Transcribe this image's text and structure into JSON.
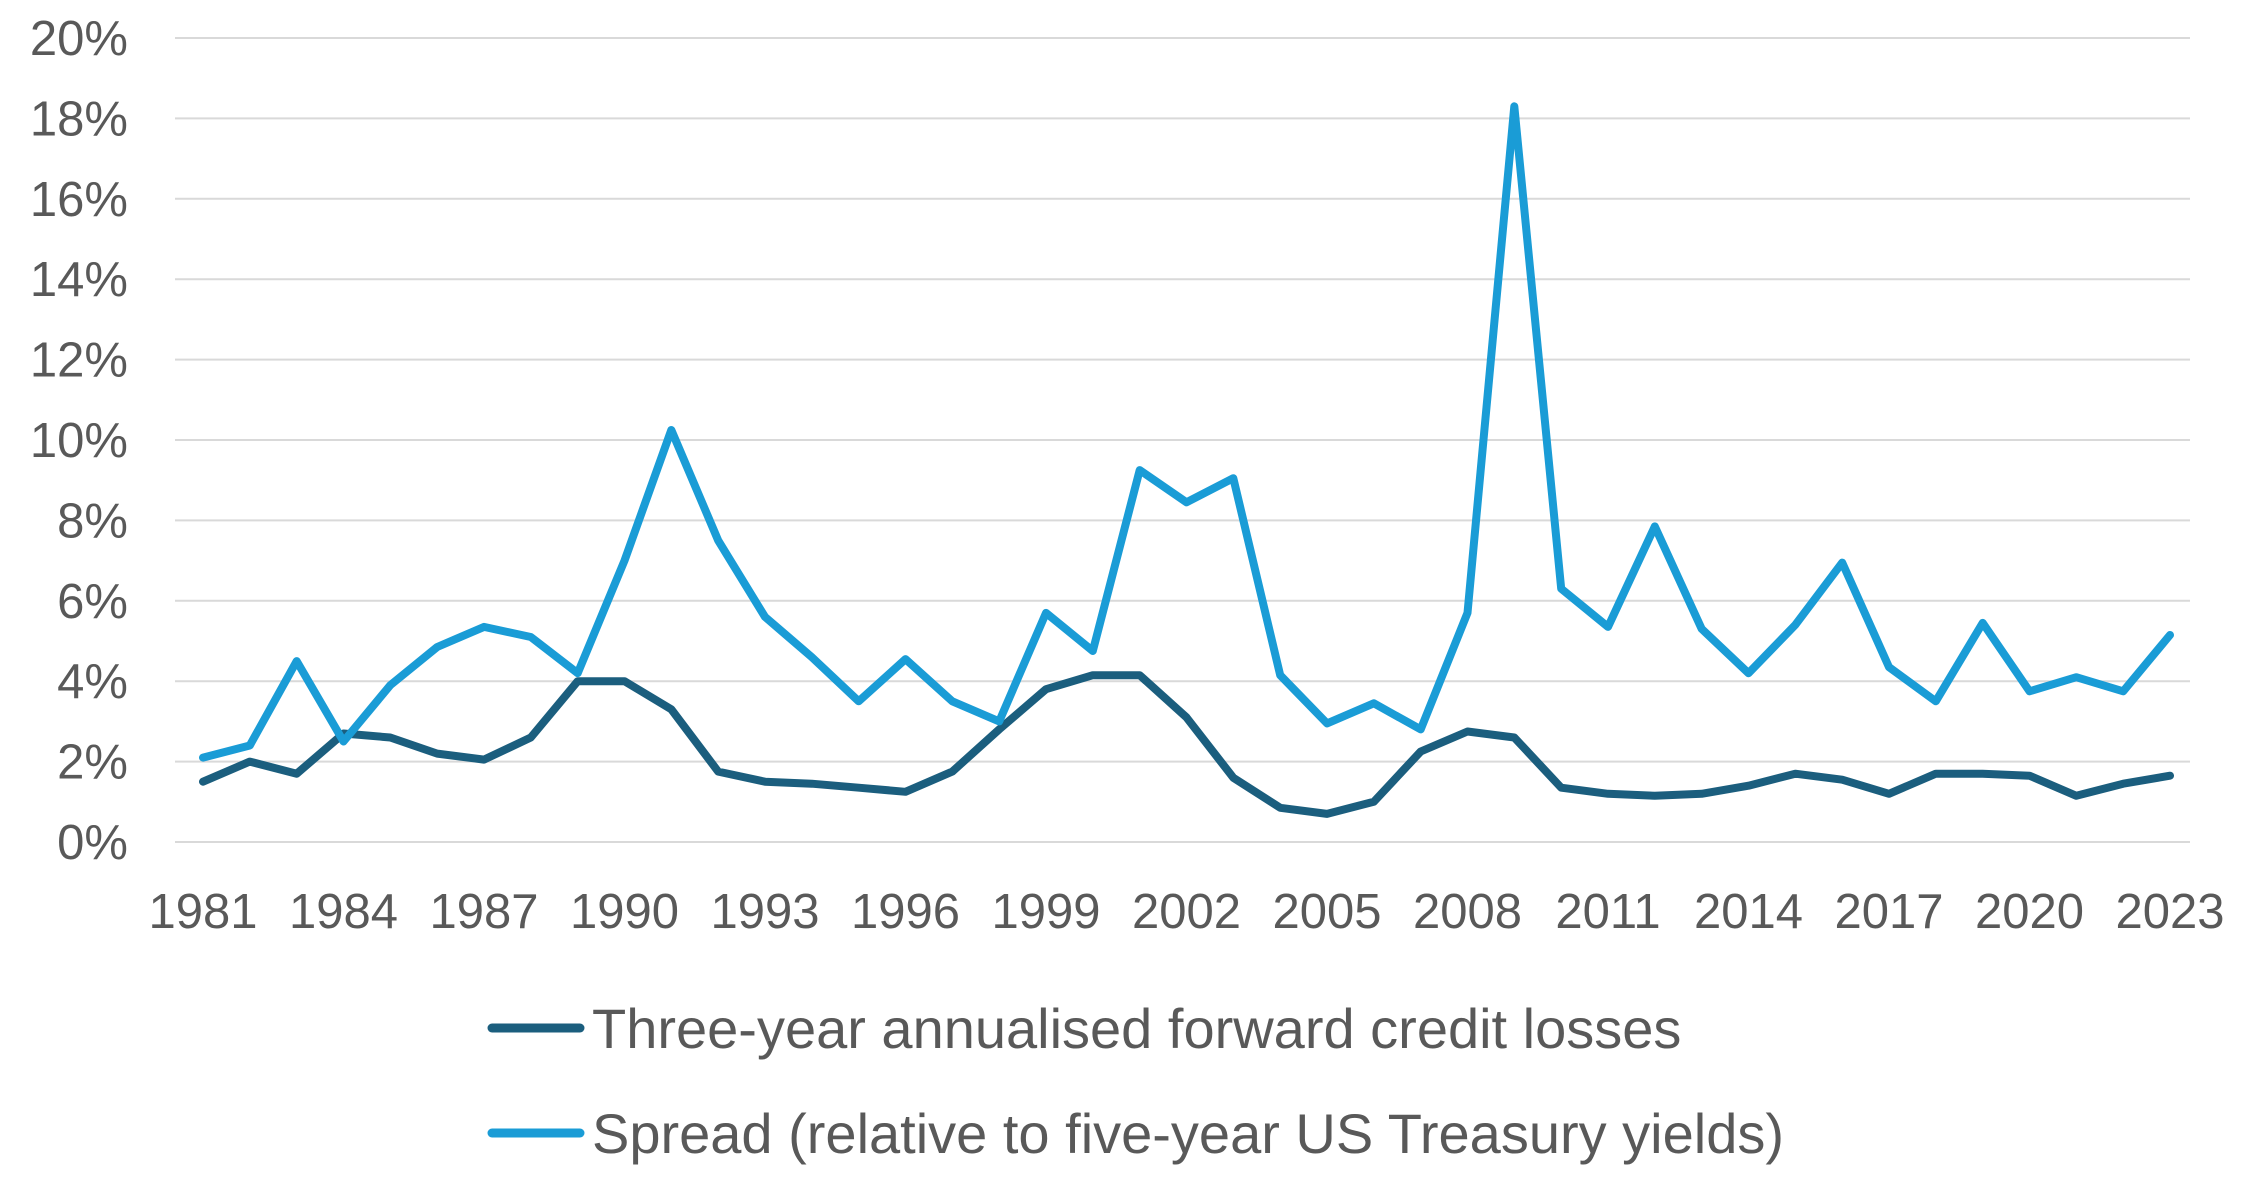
{
  "chart_data": {
    "type": "line",
    "title": "",
    "xlabel": "",
    "ylabel": "",
    "ylim": [
      0,
      20
    ],
    "y_ticks": [
      "0%",
      "2%",
      "4%",
      "6%",
      "8%",
      "10%",
      "12%",
      "14%",
      "16%",
      "18%",
      "20%"
    ],
    "y_tick_values": [
      0,
      2,
      4,
      6,
      8,
      10,
      12,
      14,
      16,
      18,
      20
    ],
    "x": [
      1981,
      1982,
      1983,
      1984,
      1985,
      1986,
      1987,
      1988,
      1989,
      1990,
      1991,
      1992,
      1993,
      1994,
      1995,
      1996,
      1997,
      1998,
      1999,
      2000,
      2001,
      2002,
      2003,
      2004,
      2005,
      2006,
      2007,
      2008,
      2009,
      2010,
      2011,
      2012,
      2013,
      2014,
      2015,
      2016,
      2017,
      2018,
      2019,
      2020,
      2021,
      2022,
      2023
    ],
    "x_tick_labels": [
      "1981",
      "1984",
      "1987",
      "1990",
      "1993",
      "1996",
      "1999",
      "2002",
      "2005",
      "2008",
      "2011",
      "2014",
      "2017",
      "2020",
      "2023"
    ],
    "grid": "horizontal",
    "legend_position": "bottom",
    "series": [
      {
        "name": "Three-year annualised forward credit losses",
        "color": "#1b5e7e",
        "values": [
          1.5,
          2.0,
          1.7,
          2.7,
          2.6,
          2.2,
          2.05,
          2.6,
          4.0,
          4.0,
          3.3,
          1.75,
          1.5,
          1.45,
          1.35,
          1.25,
          1.75,
          2.8,
          3.8,
          4.15,
          4.15,
          3.1,
          1.6,
          0.85,
          0.7,
          1.0,
          2.25,
          2.75,
          2.6,
          1.35,
          1.2,
          1.15,
          1.2,
          1.4,
          1.7,
          1.55,
          1.2,
          1.7,
          1.7,
          1.65,
          1.15,
          1.45,
          1.65
        ]
      },
      {
        "name": "Spread (relative to five-year US Treasury yields)",
        "color": "#1a9cd6",
        "values": [
          2.1,
          2.4,
          4.5,
          2.5,
          3.9,
          4.85,
          5.35,
          5.1,
          4.2,
          7.0,
          10.25,
          7.5,
          5.6,
          4.6,
          3.5,
          4.55,
          3.5,
          3.0,
          5.7,
          4.75,
          9.25,
          8.45,
          9.05,
          4.15,
          2.95,
          3.45,
          2.8,
          5.7,
          18.3,
          6.3,
          5.35,
          7.85,
          5.3,
          4.2,
          5.4,
          6.95,
          4.35,
          3.5,
          5.45,
          3.75,
          4.1,
          3.75,
          5.15
        ]
      }
    ]
  }
}
